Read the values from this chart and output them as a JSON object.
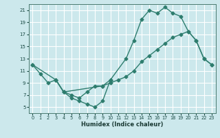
{
  "title": "",
  "xlabel": "Humidex (Indice chaleur)",
  "bg_color": "#cce8ec",
  "grid_color": "#ffffff",
  "line_color": "#2e7d6e",
  "xlim": [
    -0.5,
    23.5
  ],
  "ylim": [
    4,
    22
  ],
  "xticks": [
    0,
    1,
    2,
    3,
    4,
    5,
    6,
    7,
    8,
    9,
    10,
    11,
    12,
    13,
    14,
    15,
    16,
    17,
    18,
    19,
    20,
    21,
    22,
    23
  ],
  "yticks": [
    5,
    7,
    9,
    11,
    13,
    15,
    17,
    19,
    21
  ],
  "line1_x": [
    0,
    1,
    2,
    3,
    4,
    5,
    6,
    7,
    8,
    9,
    10,
    12,
    13,
    14,
    15,
    16,
    17,
    18,
    19,
    20,
    21,
    22,
    23
  ],
  "line1_y": [
    12,
    10.5,
    9.0,
    9.5,
    7.5,
    6.5,
    6.0,
    5.5,
    5.0,
    6.0,
    9.5,
    13.0,
    16.0,
    19.5,
    21.0,
    20.5,
    21.5,
    20.5,
    20.0,
    17.5,
    16.0,
    13.0,
    12.0
  ],
  "line2_x": [
    0,
    3,
    4,
    9,
    10,
    11,
    12,
    13,
    14,
    15,
    16,
    17,
    18,
    19,
    20,
    21,
    22,
    23
  ],
  "line2_y": [
    12,
    9.5,
    7.5,
    8.5,
    9.0,
    9.5,
    10.0,
    11.0,
    12.5,
    13.5,
    14.5,
    15.5,
    16.5,
    17.0,
    17.5,
    16.0,
    13.0,
    12.0
  ],
  "line3_x": [
    3,
    4,
    5,
    6,
    7,
    8,
    9,
    10
  ],
  "line3_y": [
    9.5,
    7.5,
    7.0,
    6.5,
    7.5,
    8.5,
    8.5,
    9.5
  ]
}
